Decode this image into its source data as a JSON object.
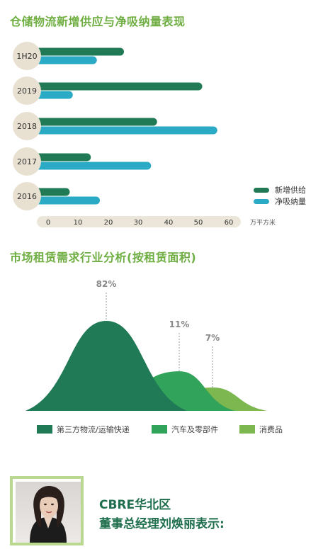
{
  "chart_data": [
    {
      "type": "bar",
      "title": "仓储物流新增供应与净吸纳量表现",
      "orientation": "horizontal",
      "categories": [
        "1H20",
        "2019",
        "2018",
        "2017",
        "2016"
      ],
      "series": [
        {
          "name": "新增供给",
          "color": "#1f7a55",
          "values": [
            28,
            54,
            39,
            17,
            10
          ]
        },
        {
          "name": "净吸纳量",
          "color": "#2aaac4",
          "values": [
            19,
            11,
            59,
            37,
            20
          ]
        }
      ],
      "xticks": [
        0,
        10,
        20,
        30,
        40,
        50,
        60
      ],
      "xlim": [
        0,
        60
      ],
      "unit_label": "万平方米",
      "legend_position": "right"
    },
    {
      "type": "area",
      "title": "市场租赁需求行业分析(按租赁面积)",
      "series": [
        {
          "name": "第三方物流/运输快递",
          "value": 82,
          "label": "82%",
          "color": "#1f7a55"
        },
        {
          "name": "汽车及零部件",
          "value": 11,
          "label": "11%",
          "color": "#32a35a"
        },
        {
          "name": "消费品",
          "value": 7,
          "label": "7%",
          "color": "#7cb84f"
        }
      ],
      "legend_position": "bottom"
    }
  ],
  "profile": {
    "line1": "CBRE华北区",
    "line2": "董事总经理刘焕丽表示:"
  }
}
